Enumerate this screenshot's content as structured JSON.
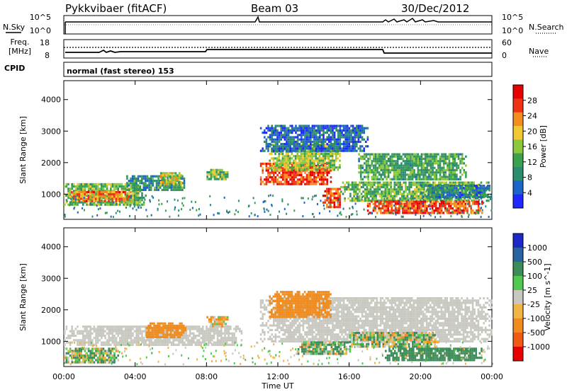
{
  "header": {
    "radar": "Pykkvibaer (fitACF)",
    "beam": "Beam 03",
    "date": "30/Dec/2012"
  },
  "status_panels": {
    "nsky_label": "N.Sky",
    "nsearch_label": "N.Search",
    "noise_ticks": [
      "10^5",
      "10^0"
    ],
    "freq_label": "Freq.",
    "freq_unit": "[MHz]",
    "freq_ticks": [
      "18",
      "8"
    ],
    "nave_label": "Nave",
    "nave_ticks": [
      "60",
      "0"
    ],
    "cpid_label": "CPID",
    "cpid_value": "normal (fast stereo) 153"
  },
  "time_axis": {
    "label": "Time UT",
    "ticks": [
      "00:00",
      "04:00",
      "08:00",
      "12:00",
      "16:00",
      "20:00",
      "00:00"
    ]
  },
  "chart_data": [
    {
      "type": "heatmap",
      "panel": "power",
      "ylabel": "Slant Range [km]",
      "yticks": [
        "1000",
        "2000",
        "3000",
        "4000"
      ],
      "ylim": [
        200,
        4600
      ],
      "xlim": [
        0,
        24
      ],
      "colorbar": {
        "label": "Power [dB]",
        "ticks": [
          "4",
          "8",
          "12",
          "16",
          "20",
          "24",
          "28"
        ],
        "colors": [
          "#1e28ff",
          "#1e64c8",
          "#2d8c6e",
          "#3ca050",
          "#8cc83c",
          "#f0c832",
          "#f58c1e",
          "#f03214",
          "#e60000"
        ]
      },
      "regions": [
        {
          "t0": 0.0,
          "t1": 4.6,
          "r0": 650,
          "r1": 1350,
          "value": 14
        },
        {
          "t0": 0.3,
          "t1": 3.8,
          "r0": 800,
          "r1": 1100,
          "value": 24
        },
        {
          "t0": 3.5,
          "t1": 6.8,
          "r0": 1100,
          "r1": 1600,
          "value": 10
        },
        {
          "t0": 5.4,
          "t1": 6.6,
          "r0": 1300,
          "r1": 1700,
          "value": 18
        },
        {
          "t0": 8.0,
          "t1": 9.2,
          "r0": 1500,
          "r1": 1800,
          "value": 14
        },
        {
          "t0": 11.0,
          "t1": 15.0,
          "r0": 1300,
          "r1": 2000,
          "value": 26
        },
        {
          "t0": 11.5,
          "t1": 15.5,
          "r0": 1800,
          "r1": 2600,
          "value": 16
        },
        {
          "t0": 11.0,
          "t1": 17.0,
          "r0": 2400,
          "r1": 3200,
          "value": 6
        },
        {
          "t0": 14.5,
          "t1": 15.5,
          "r0": 600,
          "r1": 1200,
          "value": 26
        },
        {
          "t0": 15.5,
          "t1": 23.8,
          "r0": 800,
          "r1": 1400,
          "value": 14
        },
        {
          "t0": 16.5,
          "t1": 22.5,
          "r0": 1500,
          "r1": 2300,
          "value": 12
        },
        {
          "t0": 17.0,
          "t1": 23.5,
          "r0": 400,
          "r1": 800,
          "value": 26
        },
        {
          "t0": 20.0,
          "t1": 24.0,
          "r0": 900,
          "r1": 1300,
          "value": 8
        }
      ]
    },
    {
      "type": "heatmap",
      "panel": "velocity",
      "ylabel": "Slant Range [km]",
      "yticks": [
        "1000",
        "2000",
        "3000",
        "4000"
      ],
      "ylim": [
        200,
        4600
      ],
      "xlim": [
        0,
        24
      ],
      "colorbar": {
        "label": "Velocity [m s^-1]",
        "ticks": [
          "1000",
          "500",
          "100",
          "25",
          "-25",
          "-100",
          "-500",
          "-1000"
        ],
        "colors": [
          "#1e28c8",
          "#2864a0",
          "#3c8c5a",
          "#50c850",
          "#c8c8c0",
          "#f0b446",
          "#f08c1e",
          "#f05a14",
          "#e60000"
        ]
      },
      "regions": [
        {
          "t0": 0.0,
          "t1": 10.0,
          "r0": 900,
          "r1": 1500,
          "value": 0
        },
        {
          "t0": 0.0,
          "t1": 3.0,
          "r0": 300,
          "r1": 800,
          "value": 60
        },
        {
          "t0": 4.5,
          "t1": 6.8,
          "r0": 1100,
          "r1": 1600,
          "value": -300
        },
        {
          "t0": 8.0,
          "t1": 9.2,
          "r0": 1500,
          "r1": 1800,
          "value": -80
        },
        {
          "t0": 11.0,
          "t1": 24.0,
          "r0": 1000,
          "r1": 2400,
          "value": 0
        },
        {
          "t0": 11.5,
          "t1": 15.0,
          "r0": 1800,
          "r1": 2600,
          "value": -300
        },
        {
          "t0": 16.0,
          "t1": 21.0,
          "r0": 800,
          "r1": 1300,
          "value": 60
        },
        {
          "t0": 18.0,
          "t1": 23.5,
          "r0": 400,
          "r1": 800,
          "value": 300
        },
        {
          "t0": 13.0,
          "t1": 16.0,
          "r0": 600,
          "r1": 1000,
          "value": 80
        }
      ]
    }
  ]
}
